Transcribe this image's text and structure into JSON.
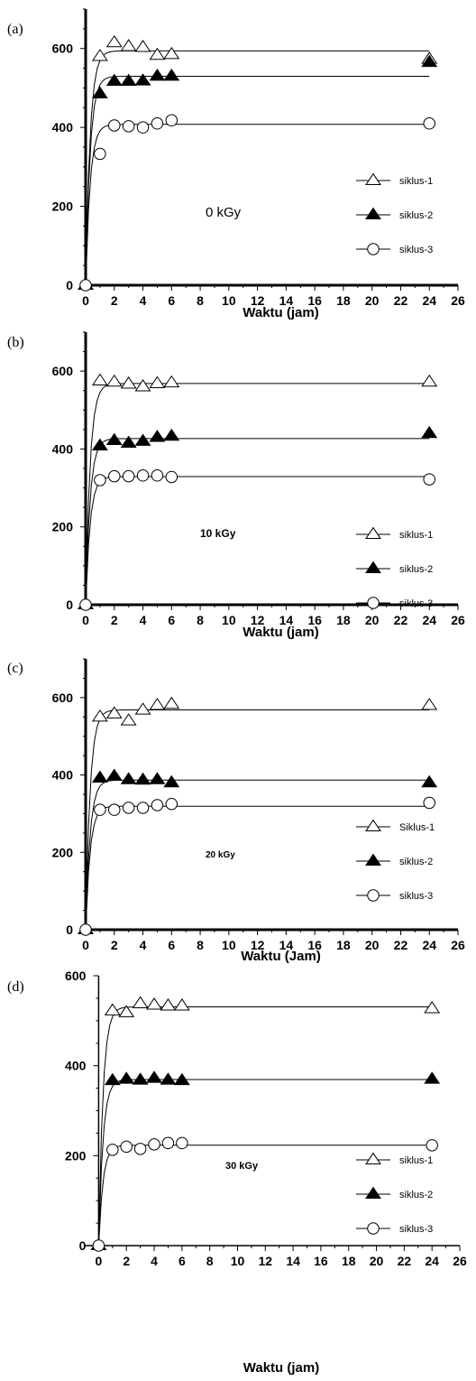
{
  "chart_data": [
    {
      "type": "scatter",
      "panel_label": "(a)",
      "xlabel": "Waktu (jam)",
      "ylabel": "",
      "annotation": "0 kGy",
      "xlim": [
        0,
        26
      ],
      "ylim": [
        0,
        700
      ],
      "xticks": [
        0,
        2,
        4,
        6,
        8,
        10,
        12,
        14,
        16,
        18,
        20,
        22,
        24,
        26
      ],
      "yticks": [
        0,
        200,
        400,
        600
      ],
      "legend_position": "right",
      "series": [
        {
          "name": "siklus-1",
          "marker": "triangle-open",
          "x": [
            0,
            1,
            2,
            3,
            4,
            5,
            6,
            24
          ],
          "y": [
            0,
            580,
            615,
            605,
            603,
            583,
            585,
            573
          ]
        },
        {
          "name": "siklus-2",
          "marker": "triangle-filled",
          "x": [
            0,
            1,
            2,
            3,
            4,
            5,
            6,
            24
          ],
          "y": [
            0,
            485,
            517,
            517,
            518,
            530,
            530,
            565
          ]
        },
        {
          "name": "siklus-3",
          "marker": "circle-open",
          "x": [
            0,
            1,
            2,
            3,
            4,
            5,
            6,
            24
          ],
          "y": [
            0,
            333,
            405,
            403,
            400,
            410,
            418,
            410
          ]
        }
      ]
    },
    {
      "type": "scatter",
      "panel_label": "(b)",
      "xlabel": "Waktu (jam)",
      "ylabel": "",
      "annotation": "10 kGy",
      "xlim": [
        0,
        26
      ],
      "ylim": [
        0,
        700
      ],
      "xticks": [
        0,
        2,
        4,
        6,
        8,
        10,
        12,
        14,
        16,
        18,
        20,
        22,
        24,
        26
      ],
      "yticks": [
        0,
        200,
        400,
        600
      ],
      "legend_position": "right",
      "series": [
        {
          "name": "siklus-1",
          "marker": "triangle-open",
          "x": [
            0,
            1,
            2,
            3,
            4,
            5,
            6,
            24
          ],
          "y": [
            0,
            575,
            572,
            567,
            560,
            568,
            570,
            572
          ]
        },
        {
          "name": "siklus-2",
          "marker": "triangle-filled",
          "x": [
            0,
            1,
            2,
            3,
            4,
            5,
            6,
            24
          ],
          "y": [
            0,
            408,
            422,
            415,
            420,
            430,
            433,
            440
          ]
        },
        {
          "name": "siklus-3",
          "marker": "circle-open",
          "x": [
            0,
            1,
            2,
            3,
            4,
            5,
            6,
            24
          ],
          "y": [
            0,
            320,
            330,
            330,
            332,
            332,
            328,
            322
          ]
        }
      ]
    },
    {
      "type": "scatter",
      "panel_label": "(c)",
      "xlabel": "Waktu (Jam)",
      "ylabel": "",
      "annotation": "20 kGy",
      "xlim": [
        0,
        26
      ],
      "ylim": [
        0,
        700
      ],
      "xticks": [
        0,
        2,
        4,
        6,
        8,
        10,
        12,
        14,
        16,
        18,
        20,
        22,
        24,
        26
      ],
      "yticks": [
        0,
        200,
        400,
        600
      ],
      "legend_position": "right",
      "series": [
        {
          "name": "Siklus-1",
          "marker": "triangle-open",
          "x": [
            0,
            1,
            2,
            3,
            4,
            5,
            6,
            24
          ],
          "y": [
            0,
            550,
            558,
            540,
            568,
            580,
            583,
            580
          ]
        },
        {
          "name": "siklus-2",
          "marker": "triangle-filled",
          "x": [
            0,
            1,
            2,
            3,
            4,
            5,
            6,
            24
          ],
          "y": [
            0,
            392,
            397,
            388,
            387,
            388,
            380,
            380
          ]
        },
        {
          "name": "siklus-3",
          "marker": "circle-open",
          "x": [
            0,
            1,
            2,
            3,
            4,
            5,
            6,
            24
          ],
          "y": [
            0,
            310,
            310,
            315,
            315,
            322,
            325,
            328
          ]
        }
      ]
    },
    {
      "type": "scatter",
      "panel_label": "(d)",
      "xlabel": "Waktu (jam)",
      "ylabel": "",
      "annotation": "30 kGy",
      "xlim": [
        -1,
        26
      ],
      "ylim": [
        0,
        600
      ],
      "xticks": [
        0,
        2,
        4,
        6,
        8,
        10,
        12,
        14,
        16,
        18,
        20,
        22,
        24,
        26
      ],
      "yticks": [
        0,
        200,
        400,
        600
      ],
      "legend_position": "right",
      "series": [
        {
          "name": "siklus-1",
          "marker": "triangle-open",
          "x": [
            0,
            1,
            2,
            3,
            4,
            5,
            6,
            24
          ],
          "y": [
            0,
            522,
            518,
            538,
            535,
            533,
            533,
            527
          ]
        },
        {
          "name": "siklus-2",
          "marker": "triangle-filled",
          "x": [
            0,
            1,
            2,
            3,
            4,
            5,
            6,
            24
          ],
          "y": [
            0,
            367,
            370,
            368,
            372,
            368,
            367,
            370
          ]
        },
        {
          "name": "siklus-3",
          "marker": "circle-open",
          "x": [
            0,
            1,
            2,
            3,
            4,
            5,
            6,
            24
          ],
          "y": [
            0,
            213,
            220,
            215,
            225,
            228,
            228,
            223
          ]
        }
      ]
    }
  ]
}
